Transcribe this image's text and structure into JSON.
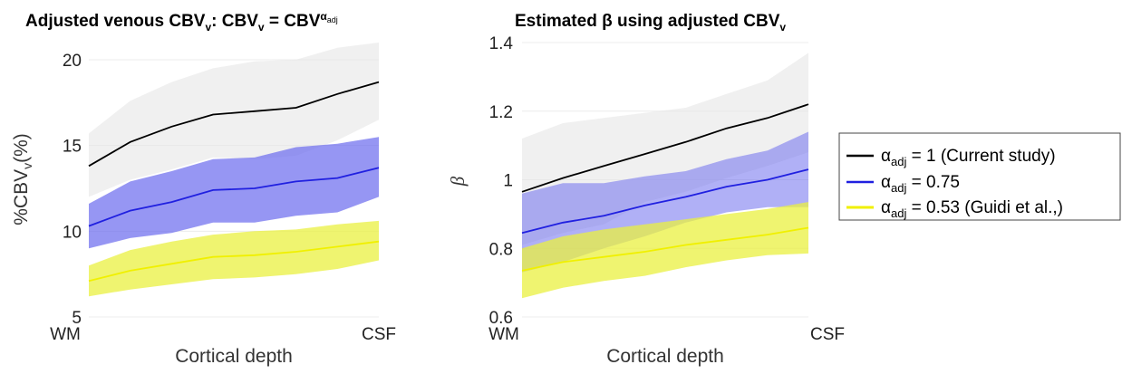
{
  "chart_data": [
    {
      "type": "line",
      "title": {
        "pre": "Adjusted venous CBV",
        "sub": "v",
        "mid": ": CBV",
        "sub2": "v",
        "post": " = CBV",
        "sup": "α",
        "supsub": "adj"
      },
      "xlabel": "Cortical depth",
      "ylabel": {
        "pre": "%CBV",
        "sub": "v",
        "post": "(%)"
      },
      "x": [
        0,
        1,
        2,
        3,
        4,
        5,
        6,
        7
      ],
      "xtick_labels": [
        "WM",
        "CSF"
      ],
      "ylim": [
        5,
        21
      ],
      "yticks": [
        "5",
        "10",
        "15",
        "20"
      ],
      "ytick_values": [
        5,
        10,
        15,
        20
      ],
      "grid": true,
      "series": [
        {
          "color": "#000000",
          "band_color": "#e6e6e6",
          "band_opacity": 0.6,
          "values": [
            13.8,
            15.2,
            16.1,
            16.8,
            17.0,
            17.2,
            18.0,
            18.7
          ],
          "upper": [
            15.7,
            17.6,
            18.7,
            19.5,
            19.9,
            20.0,
            20.7,
            21.0
          ],
          "lower": [
            12.0,
            13.0,
            13.6,
            14.3,
            14.2,
            14.4,
            15.3,
            16.5
          ]
        },
        {
          "color": "#2020e0",
          "band_color": "#6a6aee",
          "band_opacity": 0.7,
          "values": [
            10.3,
            11.2,
            11.7,
            12.4,
            12.5,
            12.9,
            13.1,
            13.7
          ],
          "upper": [
            11.6,
            12.9,
            13.5,
            14.2,
            14.3,
            14.9,
            15.1,
            15.5
          ],
          "lower": [
            9.0,
            9.6,
            9.9,
            10.5,
            10.5,
            10.9,
            11.1,
            12.0
          ]
        },
        {
          "color": "#f0f000",
          "band_color": "#eaf040",
          "band_opacity": 0.75,
          "values": [
            7.1,
            7.7,
            8.1,
            8.5,
            8.6,
            8.8,
            9.1,
            9.4
          ],
          "upper": [
            8.0,
            8.9,
            9.4,
            9.8,
            10.0,
            10.1,
            10.4,
            10.6
          ],
          "lower": [
            6.2,
            6.6,
            6.9,
            7.2,
            7.3,
            7.5,
            7.8,
            8.3
          ]
        }
      ]
    },
    {
      "type": "line",
      "title": {
        "pre": "Estimated β using adjusted CBV",
        "sub": "v"
      },
      "xlabel": "Cortical depth",
      "ylabel": "β",
      "x": [
        0,
        1,
        2,
        3,
        4,
        5,
        6,
        7
      ],
      "xtick_labels": [
        "WM",
        "CSF"
      ],
      "ylim": [
        0.6,
        1.4
      ],
      "yticks": [
        "0.6",
        "0.8",
        "1",
        "1.2",
        "1.4"
      ],
      "ytick_values": [
        0.6,
        0.8,
        1.0,
        1.2,
        1.4
      ],
      "grid": true,
      "series": [
        {
          "color": "#000000",
          "band_color": "#e6e6e6",
          "band_opacity": 0.6,
          "values": [
            0.965,
            1.005,
            1.04,
            1.075,
            1.11,
            1.15,
            1.18,
            1.22
          ],
          "upper": [
            1.12,
            1.165,
            1.18,
            1.195,
            1.21,
            1.25,
            1.29,
            1.37
          ],
          "lower": [
            0.81,
            0.845,
            0.87,
            0.935,
            0.965,
            1.005,
            1.04,
            1.08
          ]
        },
        {
          "color": "#2020e0",
          "band_color": "#7070ee",
          "band_opacity": 0.55,
          "values": [
            0.845,
            0.875,
            0.895,
            0.925,
            0.95,
            0.98,
            1.0,
            1.03
          ],
          "upper": [
            0.96,
            0.99,
            0.99,
            1.01,
            1.025,
            1.06,
            1.085,
            1.14
          ],
          "lower": [
            0.73,
            0.76,
            0.8,
            0.835,
            0.875,
            0.905,
            0.92,
            0.92
          ]
        },
        {
          "color": "#f0f000",
          "band_color": "#eaf040",
          "band_opacity": 0.75,
          "values": [
            0.735,
            0.76,
            0.775,
            0.79,
            0.81,
            0.825,
            0.84,
            0.86
          ],
          "upper": [
            0.8,
            0.835,
            0.855,
            0.87,
            0.885,
            0.9,
            0.915,
            0.935
          ],
          "lower": [
            0.655,
            0.685,
            0.705,
            0.72,
            0.745,
            0.765,
            0.78,
            0.785
          ]
        }
      ]
    }
  ],
  "legend": {
    "placement": "right",
    "entries": [
      {
        "color": "#000000",
        "pre": "α",
        "sub": "adj",
        "post": " = 1 (Current study)"
      },
      {
        "color": "#2020e0",
        "pre": "α",
        "sub": "adj",
        "post": " = 0.75"
      },
      {
        "color": "#f0f000",
        "pre": "α",
        "sub": "adj",
        "post": " = 0.53 (Guidi et al.,)"
      }
    ]
  }
}
